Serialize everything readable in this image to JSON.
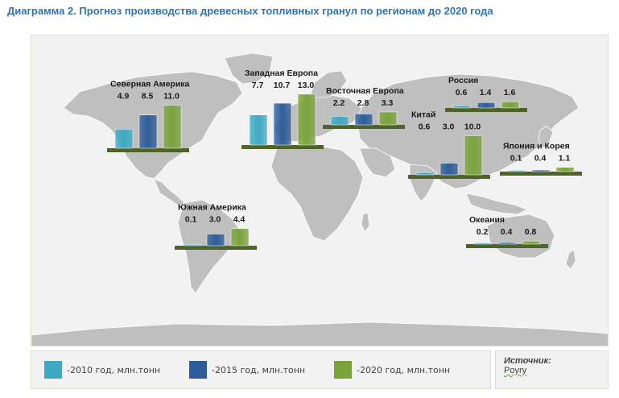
{
  "title": "Диаграмма 2. Прогноз производства древесных топливных гранул по регионам до 2020 года",
  "colors": {
    "series_2010": "#3fa9c4",
    "series_2015": "#2f5d9b",
    "series_2020": "#7aa33c",
    "base": "#4f6228",
    "land": "#bfbfbf",
    "panel": "#f2f2f2",
    "title": "#2e74b5"
  },
  "chart_data": {
    "type": "bar",
    "series": [
      {
        "name": "2010 год, млн.тонн"
      },
      {
        "name": "2015 год, млн.тонн"
      },
      {
        "name": "2020 год, млн.тонн"
      }
    ],
    "regions": [
      {
        "name": "Северная Америка",
        "values": [
          4.9,
          8.5,
          11.0
        ],
        "labels": [
          "4.9",
          "8.5",
          "11.0"
        ]
      },
      {
        "name": "Западная Европа",
        "values": [
          7.7,
          10.7,
          13.0
        ],
        "labels": [
          "7.7",
          "10.7",
          "13.0"
        ]
      },
      {
        "name": "Восточная Европа",
        "values": [
          2.2,
          2.8,
          3.3
        ],
        "labels": [
          "2.2",
          "2.8",
          "3.3"
        ]
      },
      {
        "name": "Россия",
        "values": [
          0.6,
          1.4,
          1.6
        ],
        "labels": [
          "0.6",
          "1.4",
          "1.6"
        ]
      },
      {
        "name": "Китай",
        "values": [
          0.6,
          3.0,
          10.0
        ],
        "labels": [
          "0.6",
          "3.0",
          "10.0"
        ]
      },
      {
        "name": "Япония и Корея",
        "values": [
          0.1,
          0.4,
          1.1
        ],
        "labels": [
          "0.1",
          "0.4",
          "1.1"
        ]
      },
      {
        "name": "Южная Америка",
        "values": [
          0.1,
          3.0,
          4.4
        ],
        "labels": [
          "0.1",
          "3.0",
          "4.4"
        ]
      },
      {
        "name": "Океания",
        "values": [
          0.2,
          0.4,
          0.8
        ],
        "labels": [
          "0.2",
          "0.4",
          "0.8"
        ]
      }
    ]
  },
  "legend": {
    "items": [
      {
        "label": "-2010 год, млн.тонн"
      },
      {
        "label": "-2015 год, млн.тонн"
      },
      {
        "label": "-2020 год, млн.тонн"
      }
    ]
  },
  "source": {
    "label": "Источник:",
    "value": "Poyry"
  }
}
